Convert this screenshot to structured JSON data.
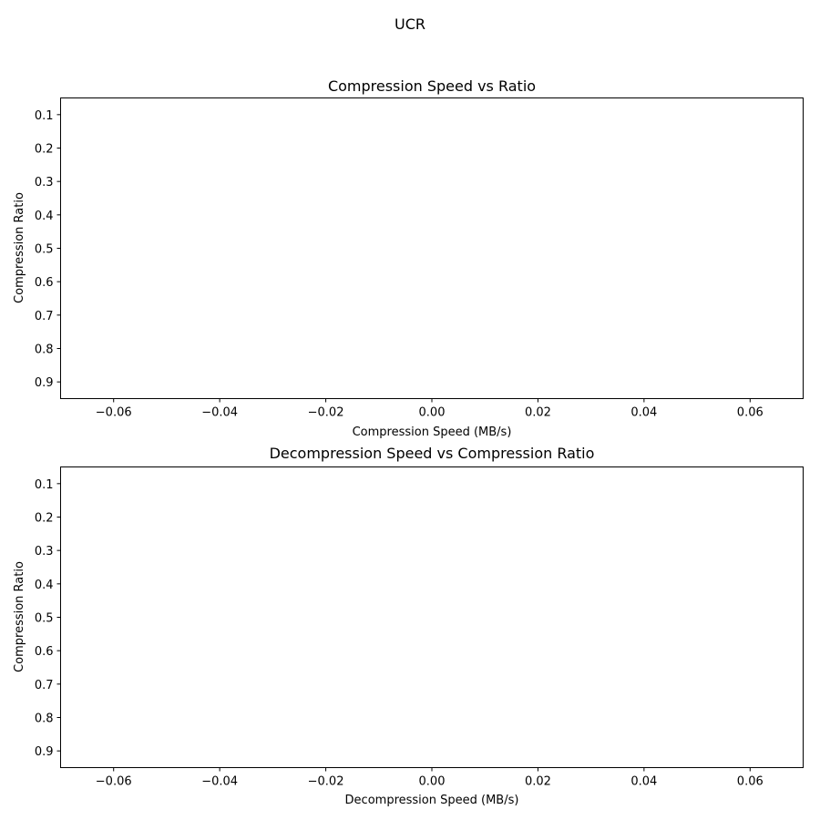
{
  "suptitle": "UCR",
  "chart_data": [
    {
      "type": "scatter",
      "title": "Compression Speed vs Ratio",
      "xlabel": "Compression Speed (MB/s)",
      "ylabel": "Compression Ratio",
      "xlim": [
        -0.07,
        0.07
      ],
      "ylim": [
        0.95,
        0.05
      ],
      "y_inverted": true,
      "xticks": [
        -0.06,
        -0.04,
        -0.02,
        0.0,
        0.02,
        0.04,
        0.06
      ],
      "xtick_labels": [
        "−0.06",
        "−0.04",
        "−0.02",
        "0.00",
        "0.02",
        "0.04",
        "0.06"
      ],
      "yticks": [
        0.1,
        0.2,
        0.3,
        0.4,
        0.5,
        0.6,
        0.7,
        0.8,
        0.9
      ],
      "ytick_labels": [
        "0.1",
        "0.2",
        "0.3",
        "0.4",
        "0.5",
        "0.6",
        "0.7",
        "0.8",
        "0.9"
      ],
      "grid": false,
      "series": []
    },
    {
      "type": "scatter",
      "title": "Decompression Speed vs Compression Ratio",
      "xlabel": "Decompression Speed (MB/s)",
      "ylabel": "Compression Ratio",
      "xlim": [
        -0.07,
        0.07
      ],
      "ylim": [
        0.95,
        0.05
      ],
      "y_inverted": true,
      "xticks": [
        -0.06,
        -0.04,
        -0.02,
        0.0,
        0.02,
        0.04,
        0.06
      ],
      "xtick_labels": [
        "−0.06",
        "−0.04",
        "−0.02",
        "0.00",
        "0.02",
        "0.04",
        "0.06"
      ],
      "yticks": [
        0.1,
        0.2,
        0.3,
        0.4,
        0.5,
        0.6,
        0.7,
        0.8,
        0.9
      ],
      "ytick_labels": [
        "0.1",
        "0.2",
        "0.3",
        "0.4",
        "0.5",
        "0.6",
        "0.7",
        "0.8",
        "0.9"
      ],
      "grid": false,
      "series": []
    }
  ]
}
